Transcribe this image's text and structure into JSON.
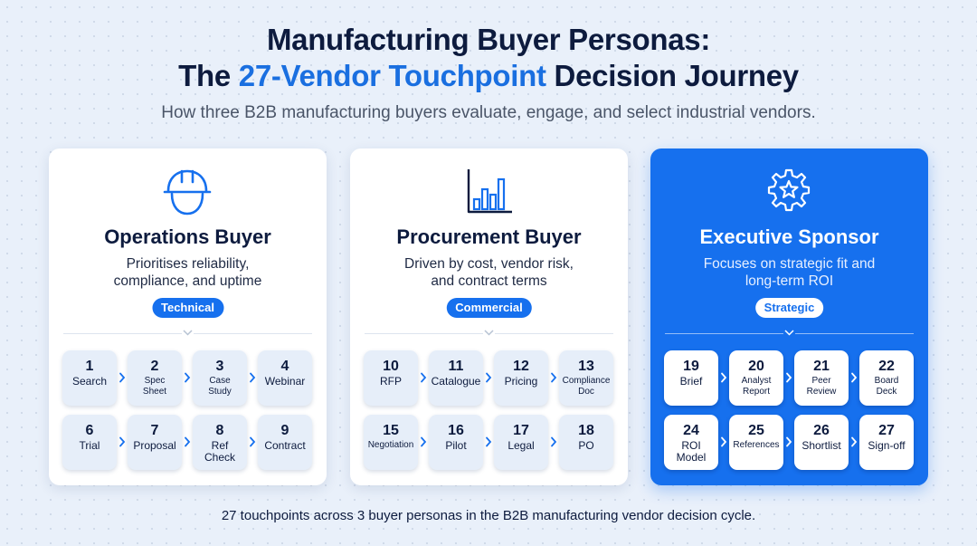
{
  "header": {
    "title_line1": "Manufacturing Buyer Personas:",
    "title_line2_pre": "The ",
    "title_line2_accent": "27-Vendor Touchpoint",
    "title_line2_post": " Decision Journey",
    "subtitle": "How three B2B manufacturing buyers evaluate, engage, and select industrial vendors."
  },
  "colors": {
    "accent": "#1a6fe0",
    "card_blue": "#1670ee",
    "navy": "#0d1b3e",
    "tile_light": "#e6eef9"
  },
  "personas": [
    {
      "icon": "hard-hat-icon",
      "name": "Operations Buyer",
      "desc_line1": "Prioritises reliability,",
      "desc_line2": "compliance, and uptime",
      "badge": "Technical",
      "touchpoints": [
        {
          "num": "1",
          "label": "Search"
        },
        {
          "num": "2",
          "label": "Spec\nSheet"
        },
        {
          "num": "3",
          "label": "Case\nStudy"
        },
        {
          "num": "4",
          "label": "Webinar"
        },
        {
          "num": "6",
          "label": "Trial"
        },
        {
          "num": "7",
          "label": "Proposal"
        },
        {
          "num": "8",
          "label": "Ref\nCheck"
        },
        {
          "num": "9",
          "label": "Contract"
        }
      ]
    },
    {
      "icon": "bar-chart-icon",
      "name": "Procurement Buyer",
      "desc_line1": "Driven by cost, vendor risk,",
      "desc_line2": "and contract terms",
      "badge": "Commercial",
      "touchpoints": [
        {
          "num": "10",
          "label": "RFP"
        },
        {
          "num": "11",
          "label": "Catalogue"
        },
        {
          "num": "12",
          "label": "Pricing"
        },
        {
          "num": "13",
          "label": "Compliance\nDoc"
        },
        {
          "num": "15",
          "label": "Negotiation"
        },
        {
          "num": "16",
          "label": "Pilot"
        },
        {
          "num": "17",
          "label": "Legal"
        },
        {
          "num": "18",
          "label": "PO"
        }
      ]
    },
    {
      "icon": "gear-star-icon",
      "name": "Executive Sponsor",
      "desc_line1": "Focuses on strategic fit and",
      "desc_line2": "long-term ROI",
      "badge": "Strategic",
      "touchpoints": [
        {
          "num": "19",
          "label": "Brief"
        },
        {
          "num": "20",
          "label": "Analyst\nReport"
        },
        {
          "num": "21",
          "label": "Peer\nReview"
        },
        {
          "num": "22",
          "label": "Board\nDeck"
        },
        {
          "num": "24",
          "label": "ROI\nModel"
        },
        {
          "num": "25",
          "label": "References"
        },
        {
          "num": "26",
          "label": "Shortlist"
        },
        {
          "num": "27",
          "label": "Sign-off"
        }
      ]
    }
  ],
  "footer": "27 touchpoints across 3 buyer personas in the B2B manufacturing vendor decision cycle."
}
